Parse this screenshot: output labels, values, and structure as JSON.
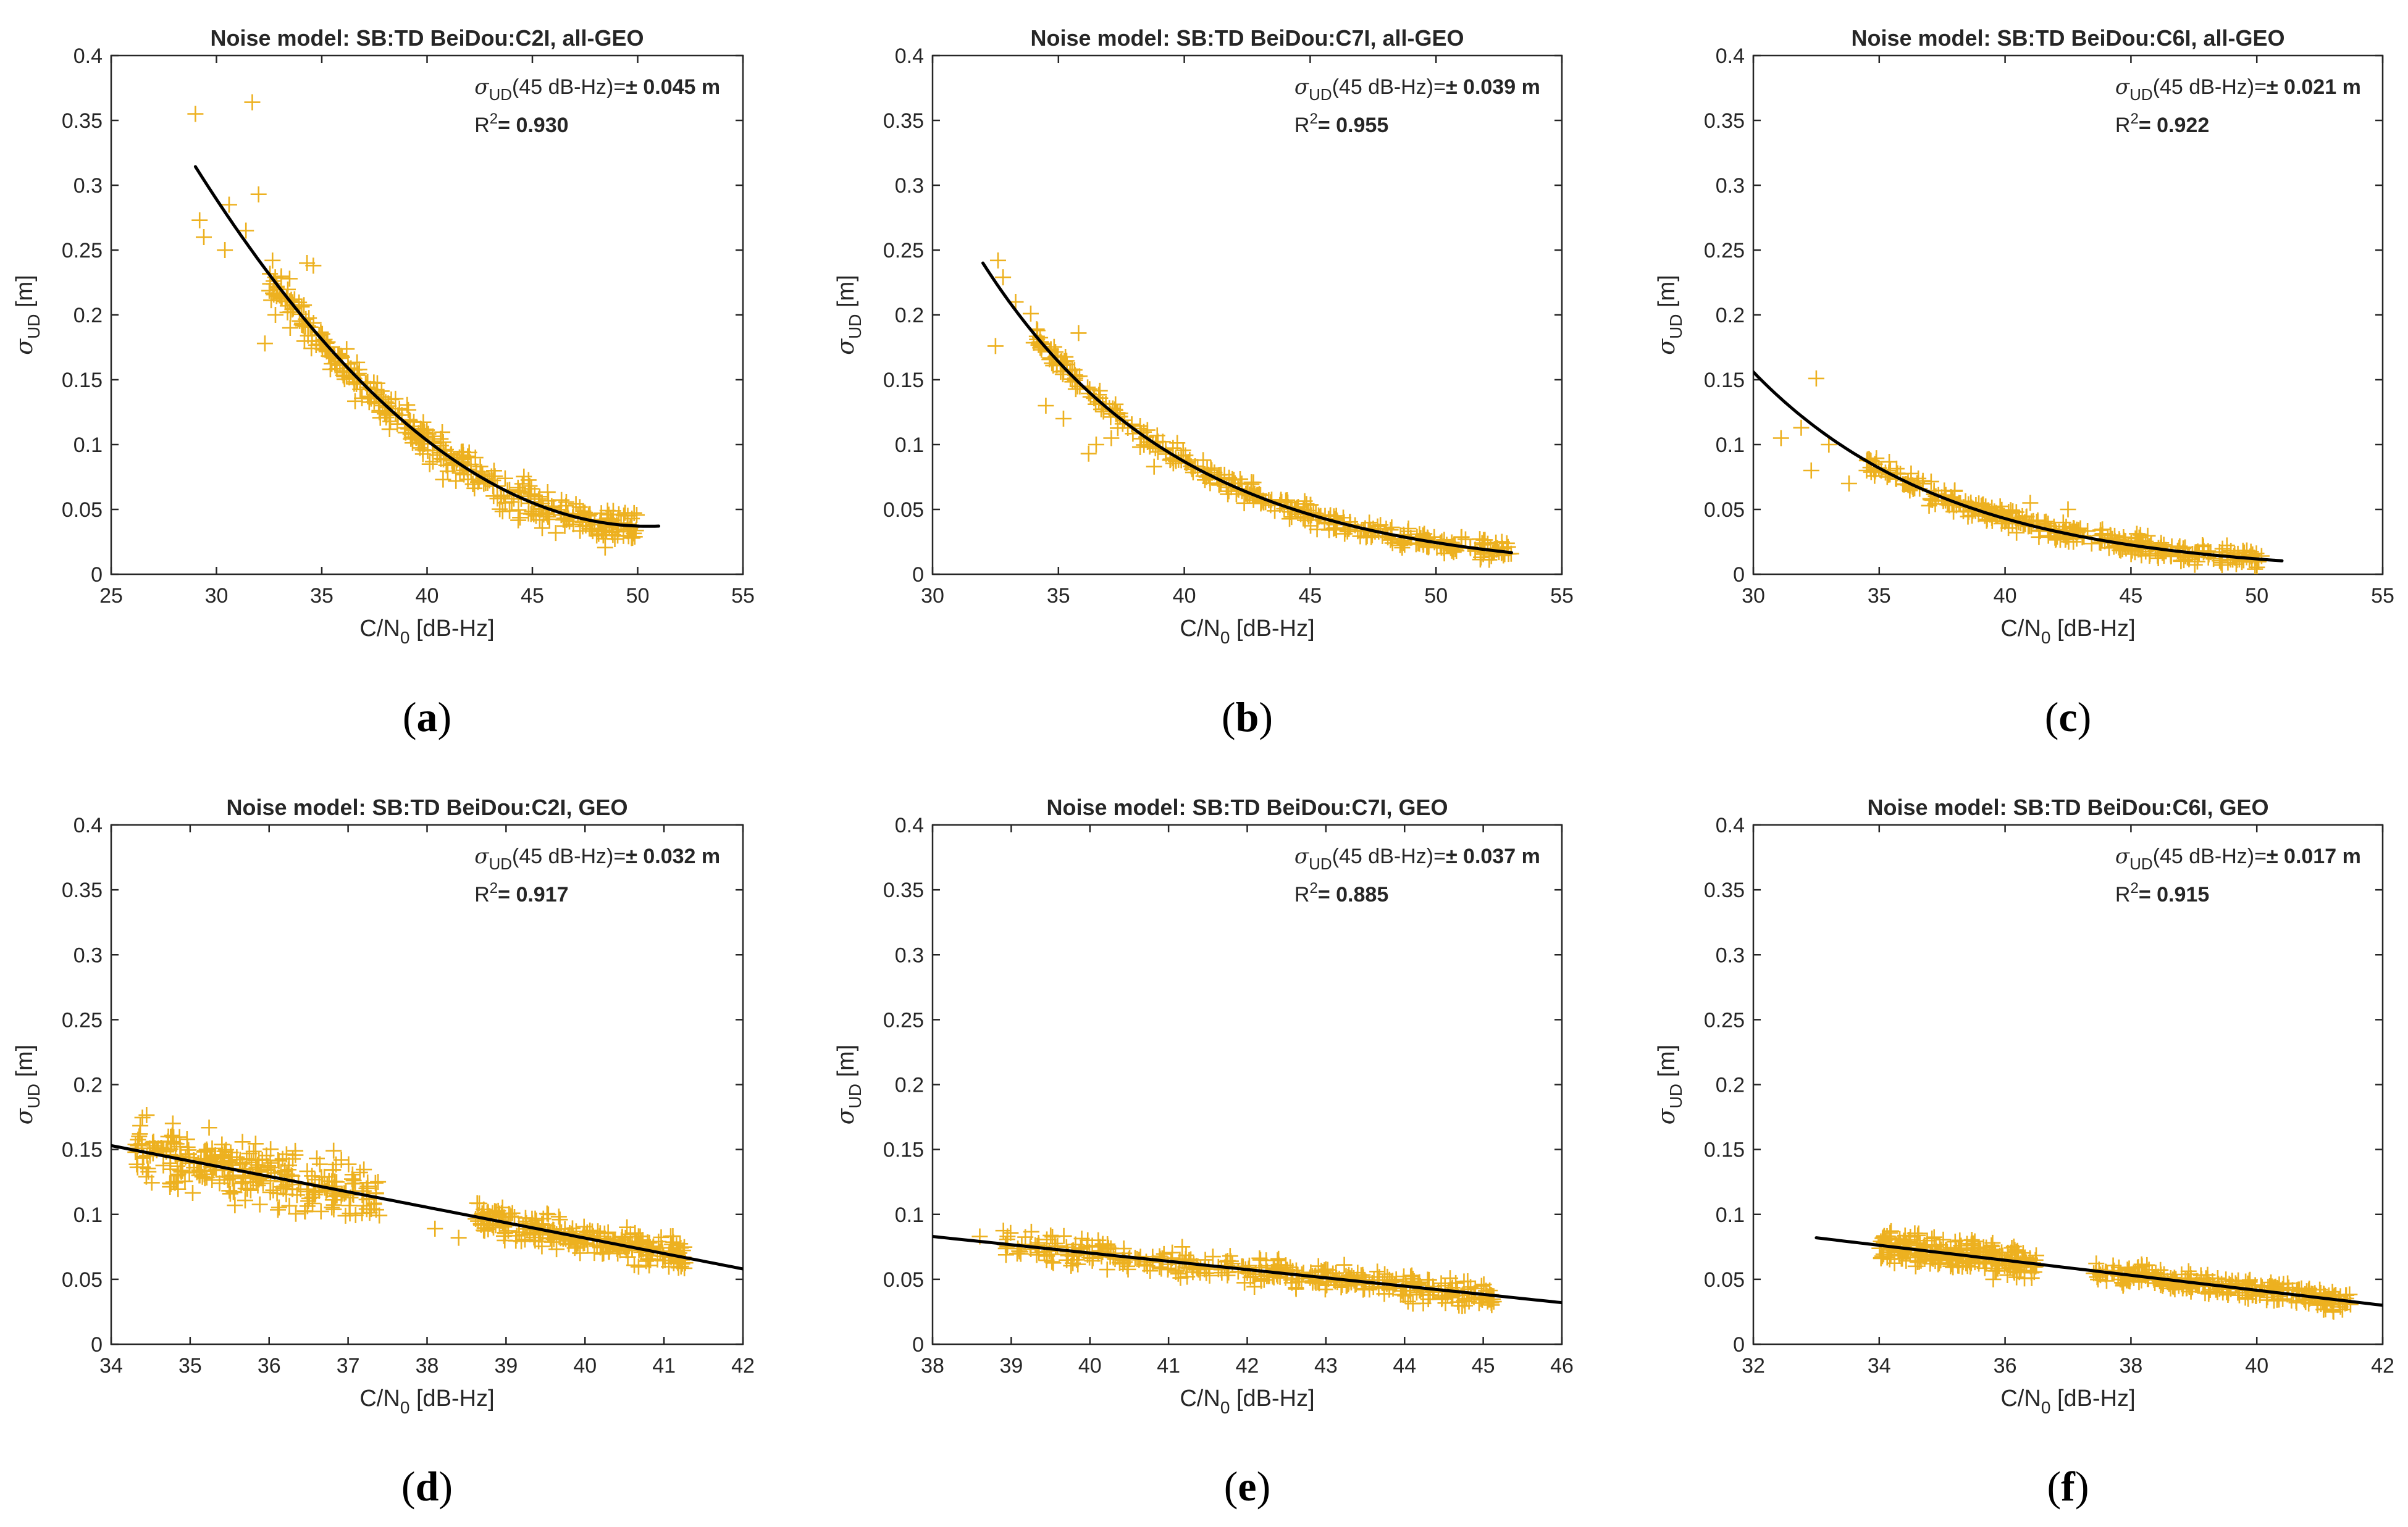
{
  "colors": {
    "scatter": "#EDB120",
    "fit": "#000000",
    "axis": "#262626"
  },
  "markers": {
    "scatter_marker": "+"
  },
  "chart_data": [
    {
      "id": "a",
      "type": "scatter",
      "title": "Noise model: SB:TD BeiDou:C2I, all-GEO",
      "xlabel_main": "C/N",
      "xlabel_sub": "0",
      "xlabel_tail": " [dB-Hz]",
      "ylabel_sym": "σ",
      "ylabel_sub": "UD",
      "ylabel_unit": " [m]",
      "xlim": [
        25,
        55
      ],
      "ylim": [
        0,
        0.4
      ],
      "xticks": [
        25,
        30,
        35,
        40,
        45,
        50,
        55
      ],
      "xtick_labels": [
        "25",
        "30",
        "35",
        "40",
        "45",
        "50",
        "55"
      ],
      "yticks": [
        0,
        0.05,
        0.1,
        0.15,
        0.2,
        0.25,
        0.3,
        0.35,
        0.4
      ],
      "ytick_labels": [
        "0",
        "0.05",
        "0.1",
        "0.15",
        "0.2",
        "0.25",
        "0.3",
        "0.35",
        "0.4"
      ],
      "annotation": {
        "sym": "σ",
        "sub": "UD",
        "cond": "(45 dB-Hz)=",
        "pm": "± 0.045 m",
        "r2_label": "R",
        "r2_sup": "2",
        "r2_eq": "= 0.930"
      },
      "fit": {
        "model": "quadratic",
        "vertex_x": 50.5,
        "min_value": 0.037,
        "curvature": 0.0006,
        "x_range": [
          29,
          51
        ]
      },
      "scatter": {
        "outliers": [
          [
            29,
            0.355
          ],
          [
            31.7,
            0.364
          ],
          [
            29.2,
            0.273
          ],
          [
            29.4,
            0.26
          ],
          [
            30.6,
            0.285
          ],
          [
            30.4,
            0.25
          ],
          [
            32,
            0.293
          ],
          [
            31.4,
            0.265
          ],
          [
            32.3,
            0.178
          ],
          [
            34.6,
            0.238
          ],
          [
            34.3,
            0.24
          ],
          [
            33,
            0.215
          ],
          [
            32.8,
            0.2
          ],
          [
            33.5,
            0.19
          ]
        ],
        "bands": [
          {
            "x_range": [
              32.5,
              50
            ],
            "count": 420,
            "spread": 0.007,
            "bias": -0.001
          }
        ],
        "seed": 11
      },
      "caption": "a"
    },
    {
      "id": "b",
      "type": "scatter",
      "title": "Noise model: SB:TD BeiDou:C7I, all-GEO",
      "xlabel_main": "C/N",
      "xlabel_sub": "0",
      "xlabel_tail": " [dB-Hz]",
      "ylabel_sym": "σ",
      "ylabel_sub": "UD",
      "ylabel_unit": " [m]",
      "xlim": [
        30,
        55
      ],
      "ylim": [
        0,
        0.4
      ],
      "xticks": [
        30,
        35,
        40,
        45,
        50,
        55
      ],
      "xtick_labels": [
        "30",
        "35",
        "40",
        "45",
        "50",
        "55"
      ],
      "yticks": [
        0,
        0.05,
        0.1,
        0.15,
        0.2,
        0.25,
        0.3,
        0.35,
        0.4
      ],
      "ytick_labels": [
        "0",
        "0.05",
        "0.1",
        "0.15",
        "0.2",
        "0.25",
        "0.3",
        "0.35",
        "0.4"
      ],
      "annotation": {
        "sym": "σ",
        "sub": "UD",
        "cond": "(45 dB-Hz)=",
        "pm": "± 0.039 m",
        "r2_label": "R",
        "r2_sup": "2",
        "r2_eq": "= 0.955"
      },
      "fit": {
        "model": "exponential",
        "a": 0.24,
        "x0": 32,
        "k": 0.127,
        "x_range": [
          32,
          53
        ]
      },
      "scatter": {
        "outliers": [
          [
            32.6,
            0.242
          ],
          [
            32.8,
            0.229
          ],
          [
            32.5,
            0.176
          ],
          [
            33.3,
            0.21
          ],
          [
            33.9,
            0.201
          ],
          [
            35.8,
            0.186
          ],
          [
            34.5,
            0.13
          ],
          [
            35.2,
            0.12
          ],
          [
            36.5,
            0.1
          ],
          [
            37.1,
            0.105
          ],
          [
            36.2,
            0.093
          ],
          [
            38.8,
            0.083
          ]
        ],
        "bands": [
          {
            "x_range": [
              34,
              53
            ],
            "count": 400,
            "spread": 0.004,
            "bias": 0
          }
        ],
        "seed": 23
      },
      "caption": "b"
    },
    {
      "id": "c",
      "type": "scatter",
      "title": "Noise model: SB:TD BeiDou:C6I, all-GEO",
      "xlabel_main": "C/N",
      "xlabel_sub": "0",
      "xlabel_tail": " [dB-Hz]",
      "ylabel_sym": "σ",
      "ylabel_sub": "UD",
      "ylabel_unit": " [m]",
      "xlim": [
        30,
        55
      ],
      "ylim": [
        0,
        0.4
      ],
      "xticks": [
        30,
        35,
        40,
        45,
        50,
        55
      ],
      "xtick_labels": [
        "30",
        "35",
        "40",
        "45",
        "50",
        "55"
      ],
      "yticks": [
        0,
        0.05,
        0.1,
        0.15,
        0.2,
        0.25,
        0.3,
        0.35,
        0.4
      ],
      "ytick_labels": [
        "0",
        "0.05",
        "0.1",
        "0.15",
        "0.2",
        "0.25",
        "0.3",
        "0.35",
        "0.4"
      ],
      "annotation": {
        "sym": "σ",
        "sub": "UD",
        "cond": "(45 dB-Hz)=",
        "pm": "± 0.021 m",
        "r2_label": "R",
        "r2_sup": "2",
        "r2_eq": "= 0.922"
      },
      "fit": {
        "model": "exponential",
        "a": 0.156,
        "x0": 30,
        "k": 0.129,
        "x_range": [
          30,
          51
        ]
      },
      "scatter": {
        "outliers": [
          [
            32.5,
            0.151
          ],
          [
            31.9,
            0.113
          ],
          [
            31.1,
            0.105
          ],
          [
            32.3,
            0.08
          ],
          [
            33.8,
            0.07
          ],
          [
            33,
            0.1
          ],
          [
            34.5,
            0.08
          ],
          [
            42.5,
            0.05
          ],
          [
            41,
            0.055
          ]
        ],
        "bands": [
          {
            "x_range": [
              34.5,
              50.2
            ],
            "count": 380,
            "spread": 0.004,
            "bias": 0
          }
        ],
        "seed": 37
      },
      "caption": "c"
    },
    {
      "id": "d",
      "type": "scatter",
      "title": "Noise model: SB:TD BeiDou:C2I, GEO",
      "xlabel_main": "C/N",
      "xlabel_sub": "0",
      "xlabel_tail": " [dB-Hz]",
      "ylabel_sym": "σ",
      "ylabel_sub": "UD",
      "ylabel_unit": " [m]",
      "xlim": [
        34,
        42
      ],
      "ylim": [
        0,
        0.4
      ],
      "xticks": [
        34,
        35,
        36,
        37,
        38,
        39,
        40,
        41,
        42
      ],
      "xtick_labels": [
        "34",
        "35",
        "36",
        "37",
        "38",
        "39",
        "40",
        "41",
        "42"
      ],
      "yticks": [
        0,
        0.05,
        0.1,
        0.15,
        0.2,
        0.25,
        0.3,
        0.35,
        0.4
      ],
      "ytick_labels": [
        "0",
        "0.05",
        "0.1",
        "0.15",
        "0.2",
        "0.25",
        "0.3",
        "0.35",
        "0.4"
      ],
      "annotation": {
        "sym": "σ",
        "sub": "UD",
        "cond": "(45 dB-Hz)=",
        "pm": "± 0.032 m",
        "r2_label": "R",
        "r2_sup": "2",
        "r2_eq": "= 0.917"
      },
      "fit": {
        "model": "linear",
        "points": [
          [
            34,
            0.153
          ],
          [
            42,
            0.058
          ]
        ]
      },
      "scatter": {
        "outliers": [
          [
            38.1,
            0.089
          ],
          [
            38.7,
            0.1
          ],
          [
            38.4,
            0.082
          ]
        ],
        "bands": [
          {
            "x_range": [
              34.3,
              37.4
            ],
            "count": 330,
            "spread": 0.011,
            "bias": 0
          },
          {
            "x_range": [
              38.6,
              41.3
            ],
            "count": 300,
            "spread": 0.006,
            "bias": 0
          }
        ],
        "seed": 51
      },
      "caption": "d"
    },
    {
      "id": "e",
      "type": "scatter",
      "title": "Noise model: SB:TD BeiDou:C7I, GEO",
      "xlabel_main": "C/N",
      "xlabel_sub": "0",
      "xlabel_tail": " [dB-Hz]",
      "ylabel_sym": "σ",
      "ylabel_sub": "UD",
      "ylabel_unit": " [m]",
      "xlim": [
        38,
        46
      ],
      "ylim": [
        0,
        0.4
      ],
      "xticks": [
        38,
        39,
        40,
        41,
        42,
        43,
        44,
        45,
        46
      ],
      "xtick_labels": [
        "38",
        "39",
        "40",
        "41",
        "42",
        "43",
        "44",
        "45",
        "46"
      ],
      "yticks": [
        0,
        0.05,
        0.1,
        0.15,
        0.2,
        0.25,
        0.3,
        0.35,
        0.4
      ],
      "ytick_labels": [
        "0",
        "0.05",
        "0.1",
        "0.15",
        "0.2",
        "0.25",
        "0.3",
        "0.35",
        "0.4"
      ],
      "annotation": {
        "sym": "σ",
        "sub": "UD",
        "cond": "(45 dB-Hz)=",
        "pm": "± 0.037 m",
        "r2_label": "R",
        "r2_sup": "2",
        "r2_eq": "= 0.885"
      },
      "fit": {
        "model": "linear",
        "points": [
          [
            38,
            0.083
          ],
          [
            46,
            0.032
          ]
        ]
      },
      "scatter": {
        "outliers": [
          [
            38.6,
            0.083
          ]
        ],
        "bands": [
          {
            "x_range": [
              38.9,
              45.2
            ],
            "count": 420,
            "spread": 0.005,
            "bias": 0
          }
        ],
        "seed": 67
      },
      "caption": "e"
    },
    {
      "id": "f",
      "type": "scatter",
      "title": "Noise model: SB:TD BeiDou:C6I, GEO",
      "xlabel_main": "C/N",
      "xlabel_sub": "0",
      "xlabel_tail": " [dB-Hz]",
      "ylabel_sym": "σ",
      "ylabel_sub": "UD",
      "ylabel_unit": " [m]",
      "xlim": [
        32,
        42
      ],
      "ylim": [
        0,
        0.4
      ],
      "xticks": [
        32,
        34,
        36,
        38,
        40,
        42
      ],
      "xtick_labels": [
        "32",
        "34",
        "36",
        "38",
        "40",
        "42"
      ],
      "yticks": [
        0,
        0.05,
        0.1,
        0.15,
        0.2,
        0.25,
        0.3,
        0.35,
        0.4
      ],
      "ytick_labels": [
        "0",
        "0.05",
        "0.1",
        "0.15",
        "0.2",
        "0.25",
        "0.3",
        "0.35",
        "0.4"
      ],
      "annotation": {
        "sym": "σ",
        "sub": "UD",
        "cond": "(45 dB-Hz)=",
        "pm": "± 0.017 m",
        "r2_label": "R",
        "r2_sup": "2",
        "r2_eq": "= 0.915"
      },
      "fit": {
        "model": "linear",
        "points": [
          [
            33,
            0.082
          ],
          [
            42,
            0.03
          ]
        ]
      },
      "scatter": {
        "outliers": [],
        "bands": [
          {
            "x_range": [
              34,
              36.5
            ],
            "count": 280,
            "spread": 0.006,
            "bias": 0
          },
          {
            "x_range": [
              37.4,
              41.5
            ],
            "count": 300,
            "spread": 0.004,
            "bias": 0
          }
        ],
        "seed": 79
      },
      "caption": "f"
    }
  ]
}
